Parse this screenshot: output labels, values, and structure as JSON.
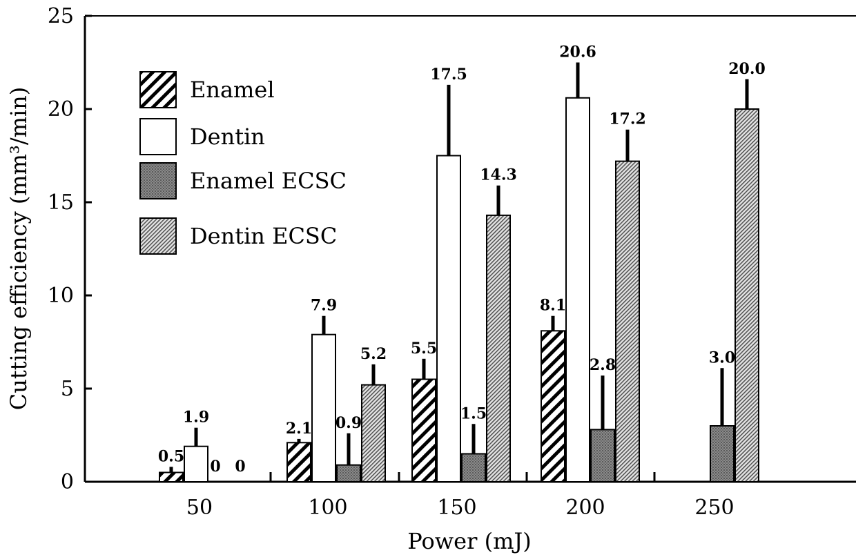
{
  "chart_data": {
    "type": "bar",
    "xlabel": "Power (mJ)",
    "ylabel": "Cutting efficiency (mm³/min)",
    "ylim": [
      0,
      25
    ],
    "yticks": [
      "0",
      "5",
      "10",
      "15",
      "20",
      "25"
    ],
    "categories": [
      "50",
      "100",
      "150",
      "200",
      "250"
    ],
    "legend_position": "top-left",
    "series": [
      {
        "name": "Enamel",
        "pattern": "diagonal-hatch",
        "values": [
          0.5,
          2.1,
          5.5,
          8.1,
          null
        ],
        "errors": [
          0.3,
          0.2,
          1.1,
          0.8,
          null
        ],
        "labels": [
          "0.5",
          "2.1",
          "5.5",
          "8.1",
          ""
        ]
      },
      {
        "name": "Dentin",
        "pattern": "open",
        "values": [
          1.9,
          7.9,
          17.5,
          20.6,
          null
        ],
        "errors": [
          1.0,
          1.0,
          3.8,
          1.9,
          null
        ],
        "labels": [
          "1.9",
          "7.9",
          "17.5",
          "20.6",
          ""
        ]
      },
      {
        "name": "Enamel ECSC",
        "pattern": "dark-stipple",
        "values": [
          0,
          0.9,
          1.5,
          2.8,
          3.0
        ],
        "errors": [
          0,
          1.7,
          1.6,
          2.9,
          3.1
        ],
        "labels": [
          "0",
          "0.9",
          "1.5",
          "2.8",
          "3.0"
        ]
      },
      {
        "name": "Dentin ECSC",
        "pattern": "fine-hatch",
        "values": [
          0,
          5.2,
          14.3,
          17.2,
          20.0
        ],
        "errors": [
          0,
          1.1,
          1.6,
          1.7,
          1.6
        ],
        "labels": [
          "0",
          "5.2",
          "14.3",
          "17.2",
          "20.0"
        ]
      }
    ]
  }
}
